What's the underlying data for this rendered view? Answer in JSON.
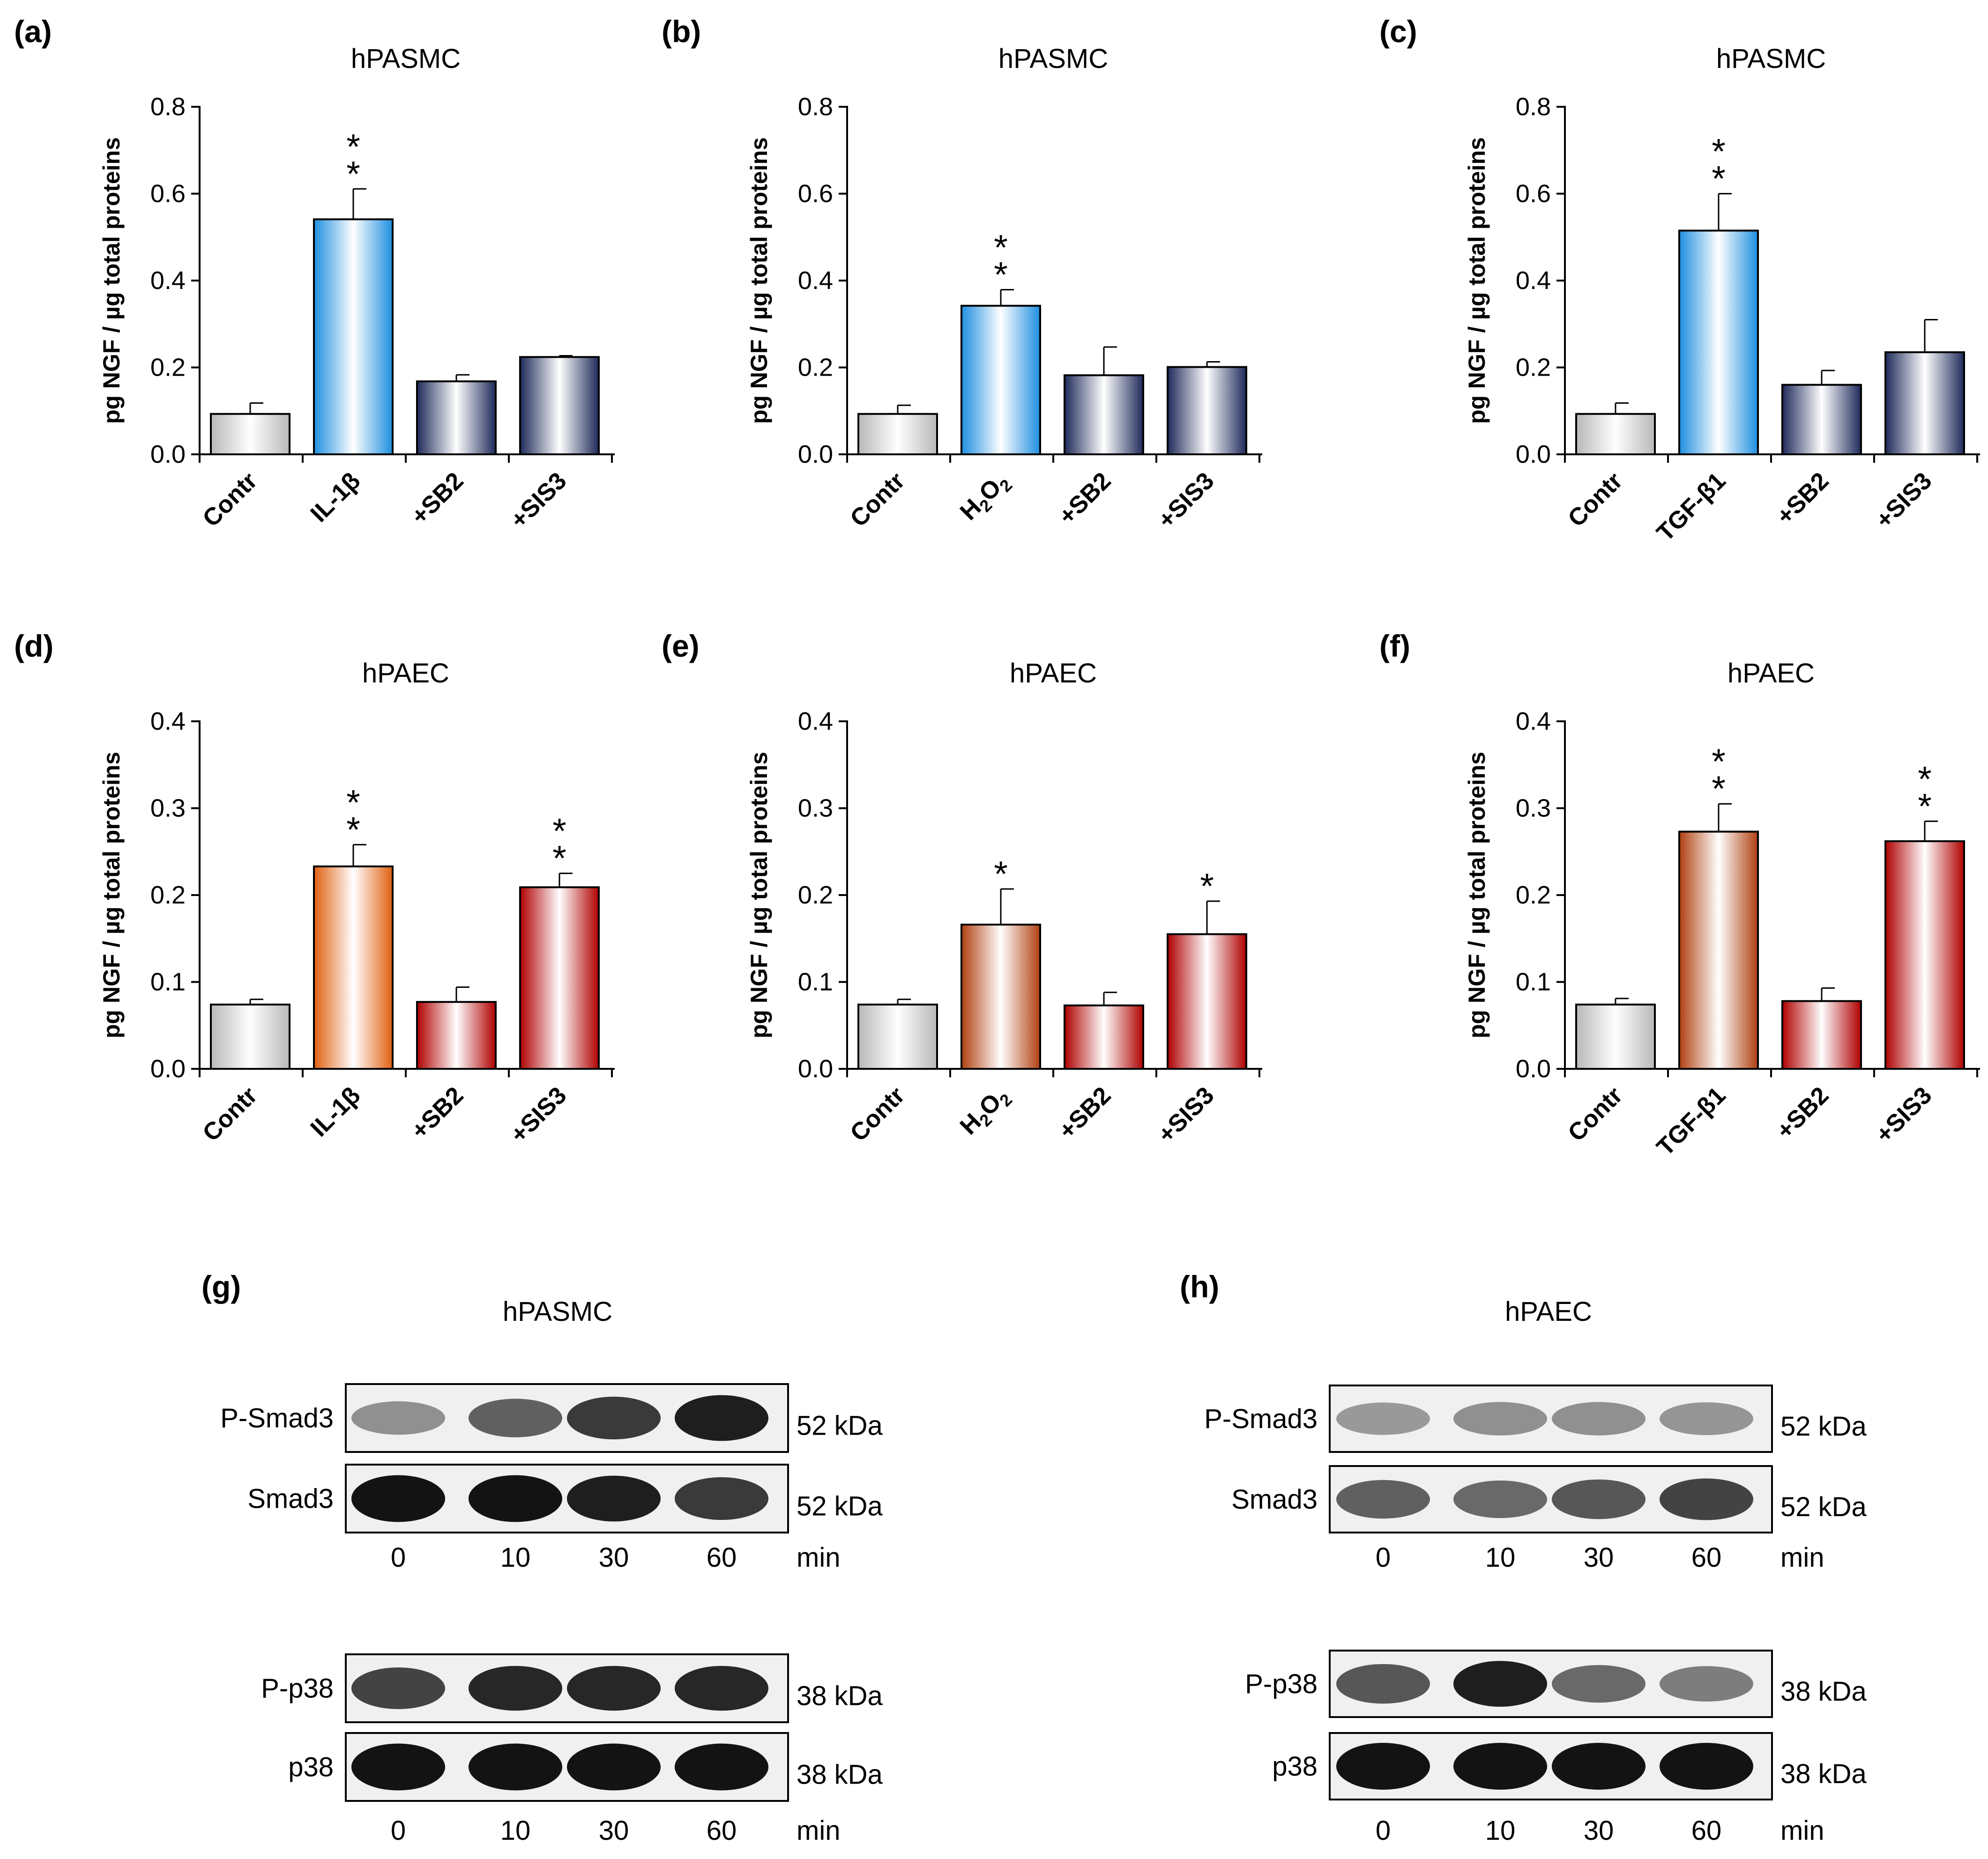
{
  "figure_note": "",
  "panels_top": [
    {
      "letter": "(a)",
      "title": "hPASMC",
      "ylabel": "pg NGF / µg total proteins"
    },
    {
      "letter": "(b)",
      "title": "hPASMC",
      "ylabel": "pg NGF / µg total proteins"
    },
    {
      "letter": "(c)",
      "title": "hPASMC",
      "ylabel": "pg NGF / µg total proteins"
    },
    {
      "letter": "(d)",
      "title": "hPAEC",
      "ylabel": "pg NGF / µg total proteins"
    },
    {
      "letter": "(e)",
      "title": "hPAEC",
      "ylabel": "pg NGF / µg total proteins"
    },
    {
      "letter": "(f)",
      "title": "hPAEC",
      "ylabel": "pg NGF / µg total proteins"
    }
  ],
  "chart_data": [
    {
      "type": "bar",
      "panel": "(a)",
      "title": "hPASMC",
      "ylabel": "pg NGF / µg total proteins",
      "categories": [
        "Contr",
        "IL-1β",
        "+SB2",
        "+SIS3"
      ],
      "values": [
        0.093,
        0.541,
        0.168,
        0.224
      ],
      "errors": [
        0.025,
        0.07,
        0.015,
        0.003
      ],
      "significance": [
        "",
        "**",
        "",
        ""
      ],
      "ylim": [
        0,
        0.8
      ],
      "yticks": [
        "0.0",
        "0.2",
        "0.4",
        "0.6",
        "0.8"
      ],
      "color_theme": "blue"
    },
    {
      "type": "bar",
      "panel": "(b)",
      "title": "hPASMC",
      "ylabel": "pg NGF / µg total proteins",
      "categories": [
        "Contr",
        "H2O2",
        "+SB2",
        "+SIS3"
      ],
      "values": [
        0.093,
        0.342,
        0.182,
        0.201
      ],
      "errors": [
        0.02,
        0.037,
        0.065,
        0.012
      ],
      "significance": [
        "",
        "**",
        "",
        ""
      ],
      "ylim": [
        0,
        0.8
      ],
      "yticks": [
        "0.0",
        "0.2",
        "0.4",
        "0.6",
        "0.8"
      ],
      "color_theme": "blue"
    },
    {
      "type": "bar",
      "panel": "(c)",
      "title": "hPASMC",
      "ylabel": "pg NGF / µg total proteins",
      "categories": [
        "Contr",
        "TGF-β1",
        "+SB2",
        "+SIS3"
      ],
      "values": [
        0.093,
        0.515,
        0.16,
        0.235
      ],
      "errors": [
        0.025,
        0.085,
        0.033,
        0.075
      ],
      "significance": [
        "",
        "**",
        "",
        ""
      ],
      "ylim": [
        0,
        0.8
      ],
      "yticks": [
        "0.0",
        "0.2",
        "0.4",
        "0.6",
        "0.8"
      ],
      "color_theme": "blue"
    },
    {
      "type": "bar",
      "panel": "(d)",
      "title": "hPAEC",
      "ylabel": "pg NGF / µg total proteins",
      "categories": [
        "Contr",
        "IL-1β",
        "+SB2",
        "+SIS3"
      ],
      "values": [
        0.074,
        0.233,
        0.077,
        0.209
      ],
      "errors": [
        0.006,
        0.025,
        0.017,
        0.016
      ],
      "significance": [
        "",
        "**",
        "",
        "**"
      ],
      "ylim": [
        0,
        0.4
      ],
      "yticks": [
        "0.0",
        "0.1",
        "0.2",
        "0.3",
        "0.4"
      ],
      "color_theme": "red"
    },
    {
      "type": "bar",
      "panel": "(e)",
      "title": "hPAEC",
      "ylabel": "pg NGF / µg total proteins",
      "categories": [
        "Contr",
        "H2O2",
        "+SB2",
        "+SIS3"
      ],
      "values": [
        0.074,
        0.166,
        0.073,
        0.155
      ],
      "errors": [
        0.006,
        0.041,
        0.015,
        0.038
      ],
      "significance": [
        "",
        "*",
        "",
        "*"
      ],
      "ylim": [
        0,
        0.4
      ],
      "yticks": [
        "0.0",
        "0.1",
        "0.2",
        "0.3",
        "0.4"
      ],
      "color_theme": "red"
    },
    {
      "type": "bar",
      "panel": "(f)",
      "title": "hPAEC",
      "ylabel": "pg NGF / µg total proteins",
      "categories": [
        "Contr",
        "TGF-β1",
        "+SB2",
        "+SIS3"
      ],
      "values": [
        0.074,
        0.273,
        0.078,
        0.262
      ],
      "errors": [
        0.007,
        0.032,
        0.015,
        0.023
      ],
      "significance": [
        "",
        "**",
        "",
        "**"
      ],
      "ylim": [
        0,
        0.4
      ],
      "yticks": [
        "0.0",
        "0.1",
        "0.2",
        "0.3",
        "0.4"
      ],
      "color_theme": "red"
    }
  ],
  "blots": [
    {
      "letter": "(g)",
      "title": "hPASMC",
      "rows": [
        {
          "label": "P-Smad3",
          "kda": "52 kDa",
          "intensities": [
            0.35,
            0.6,
            0.8,
            0.95
          ]
        },
        {
          "label": "Smad3",
          "kda": "52 kDa",
          "intensities": [
            1.0,
            1.0,
            0.95,
            0.8
          ]
        },
        {
          "label": "P-p38",
          "kda": "38 kDa",
          "intensities": [
            0.75,
            0.9,
            0.9,
            0.9
          ]
        },
        {
          "label": "p38",
          "kda": "38 kDa",
          "intensities": [
            1.0,
            1.0,
            1.0,
            1.0
          ]
        }
      ],
      "lanes": [
        "0",
        "10",
        "30",
        "60"
      ],
      "unit": "min"
    },
    {
      "letter": "(h)",
      "title": "hPAEC",
      "rows": [
        {
          "label": "P-Smad3",
          "kda": "52 kDa",
          "intensities": [
            0.3,
            0.35,
            0.35,
            0.32
          ]
        },
        {
          "label": "Smad3",
          "kda": "52 kDa",
          "intensities": [
            0.6,
            0.55,
            0.65,
            0.75
          ]
        },
        {
          "label": "P-p38",
          "kda": "38 kDa",
          "intensities": [
            0.65,
            0.95,
            0.55,
            0.45
          ]
        },
        {
          "label": "p38",
          "kda": "38 kDa",
          "intensities": [
            1.0,
            1.0,
            1.0,
            1.0
          ]
        }
      ],
      "lanes": [
        "0",
        "10",
        "30",
        "60"
      ],
      "unit": "min"
    }
  ],
  "colors": {
    "grey_dark": "#b8b8b8",
    "blue_dark": "#1e8fe0",
    "navy_dark": "#1e2a5a",
    "orange_dark": "#e06010",
    "red_dark": "#b00000",
    "brown_dark": "#b04010",
    "text": "#000000",
    "band": "#000000",
    "blot_bg": "#f0f0f0"
  }
}
